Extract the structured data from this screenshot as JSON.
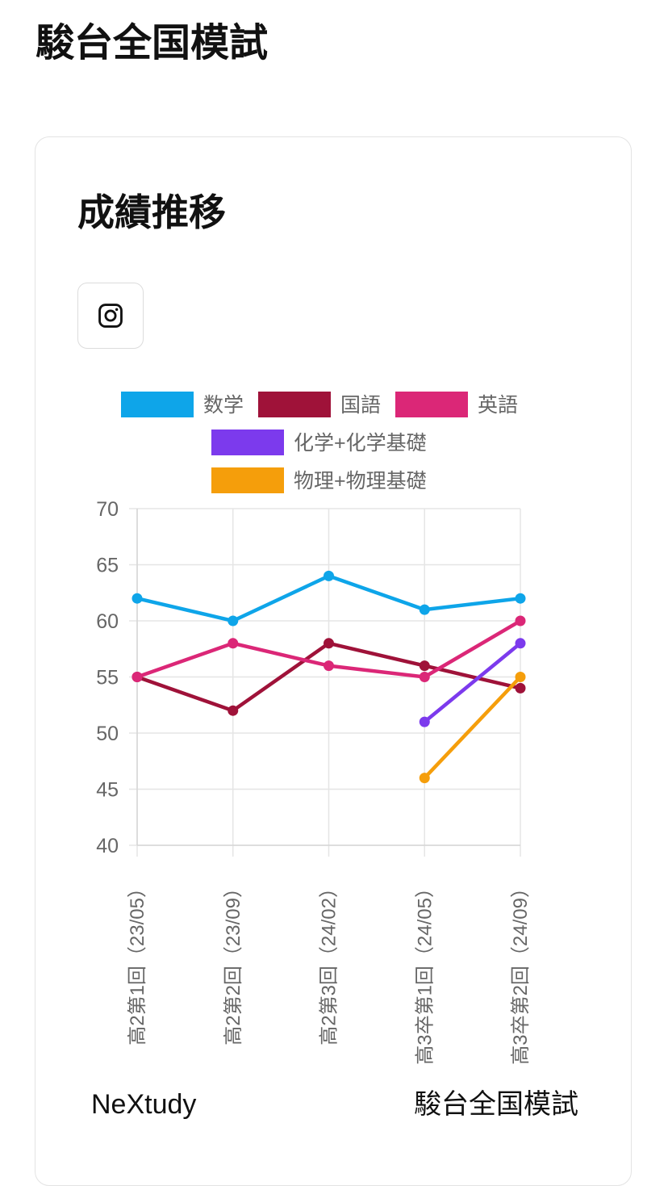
{
  "page": {
    "title": "駿台全国模試"
  },
  "card": {
    "title": "成績推移",
    "share_icon": "instagram-icon"
  },
  "footer": {
    "left": "NeXtudy",
    "right": "駿台全国模試"
  },
  "chart_data": {
    "type": "line",
    "categories": [
      "高2第1回（23/05）",
      "高2第2回（23/09）",
      "高2第3回（24/02）",
      "高3卒第1回（24/05）",
      "高3卒第2回（24/09）"
    ],
    "ylim": [
      40,
      70
    ],
    "yticks": [
      70,
      65,
      60,
      55,
      50,
      45,
      40
    ],
    "grid": true,
    "legend_position": "top",
    "series": [
      {
        "name": "数学",
        "color": "#0ea5e9",
        "values": [
          62,
          60,
          64,
          61,
          62
        ]
      },
      {
        "name": "国語",
        "color": "#9f1239",
        "values": [
          55,
          52,
          58,
          56,
          54
        ]
      },
      {
        "name": "英語",
        "color": "#db2777",
        "values": [
          55,
          58,
          56,
          55,
          60
        ]
      },
      {
        "name": "化学+化学基礎",
        "color": "#7c3aed",
        "values": [
          null,
          null,
          null,
          51,
          58
        ]
      },
      {
        "name": "物理+物理基礎",
        "color": "#f59e0b",
        "values": [
          null,
          null,
          null,
          46,
          55
        ]
      }
    ]
  }
}
